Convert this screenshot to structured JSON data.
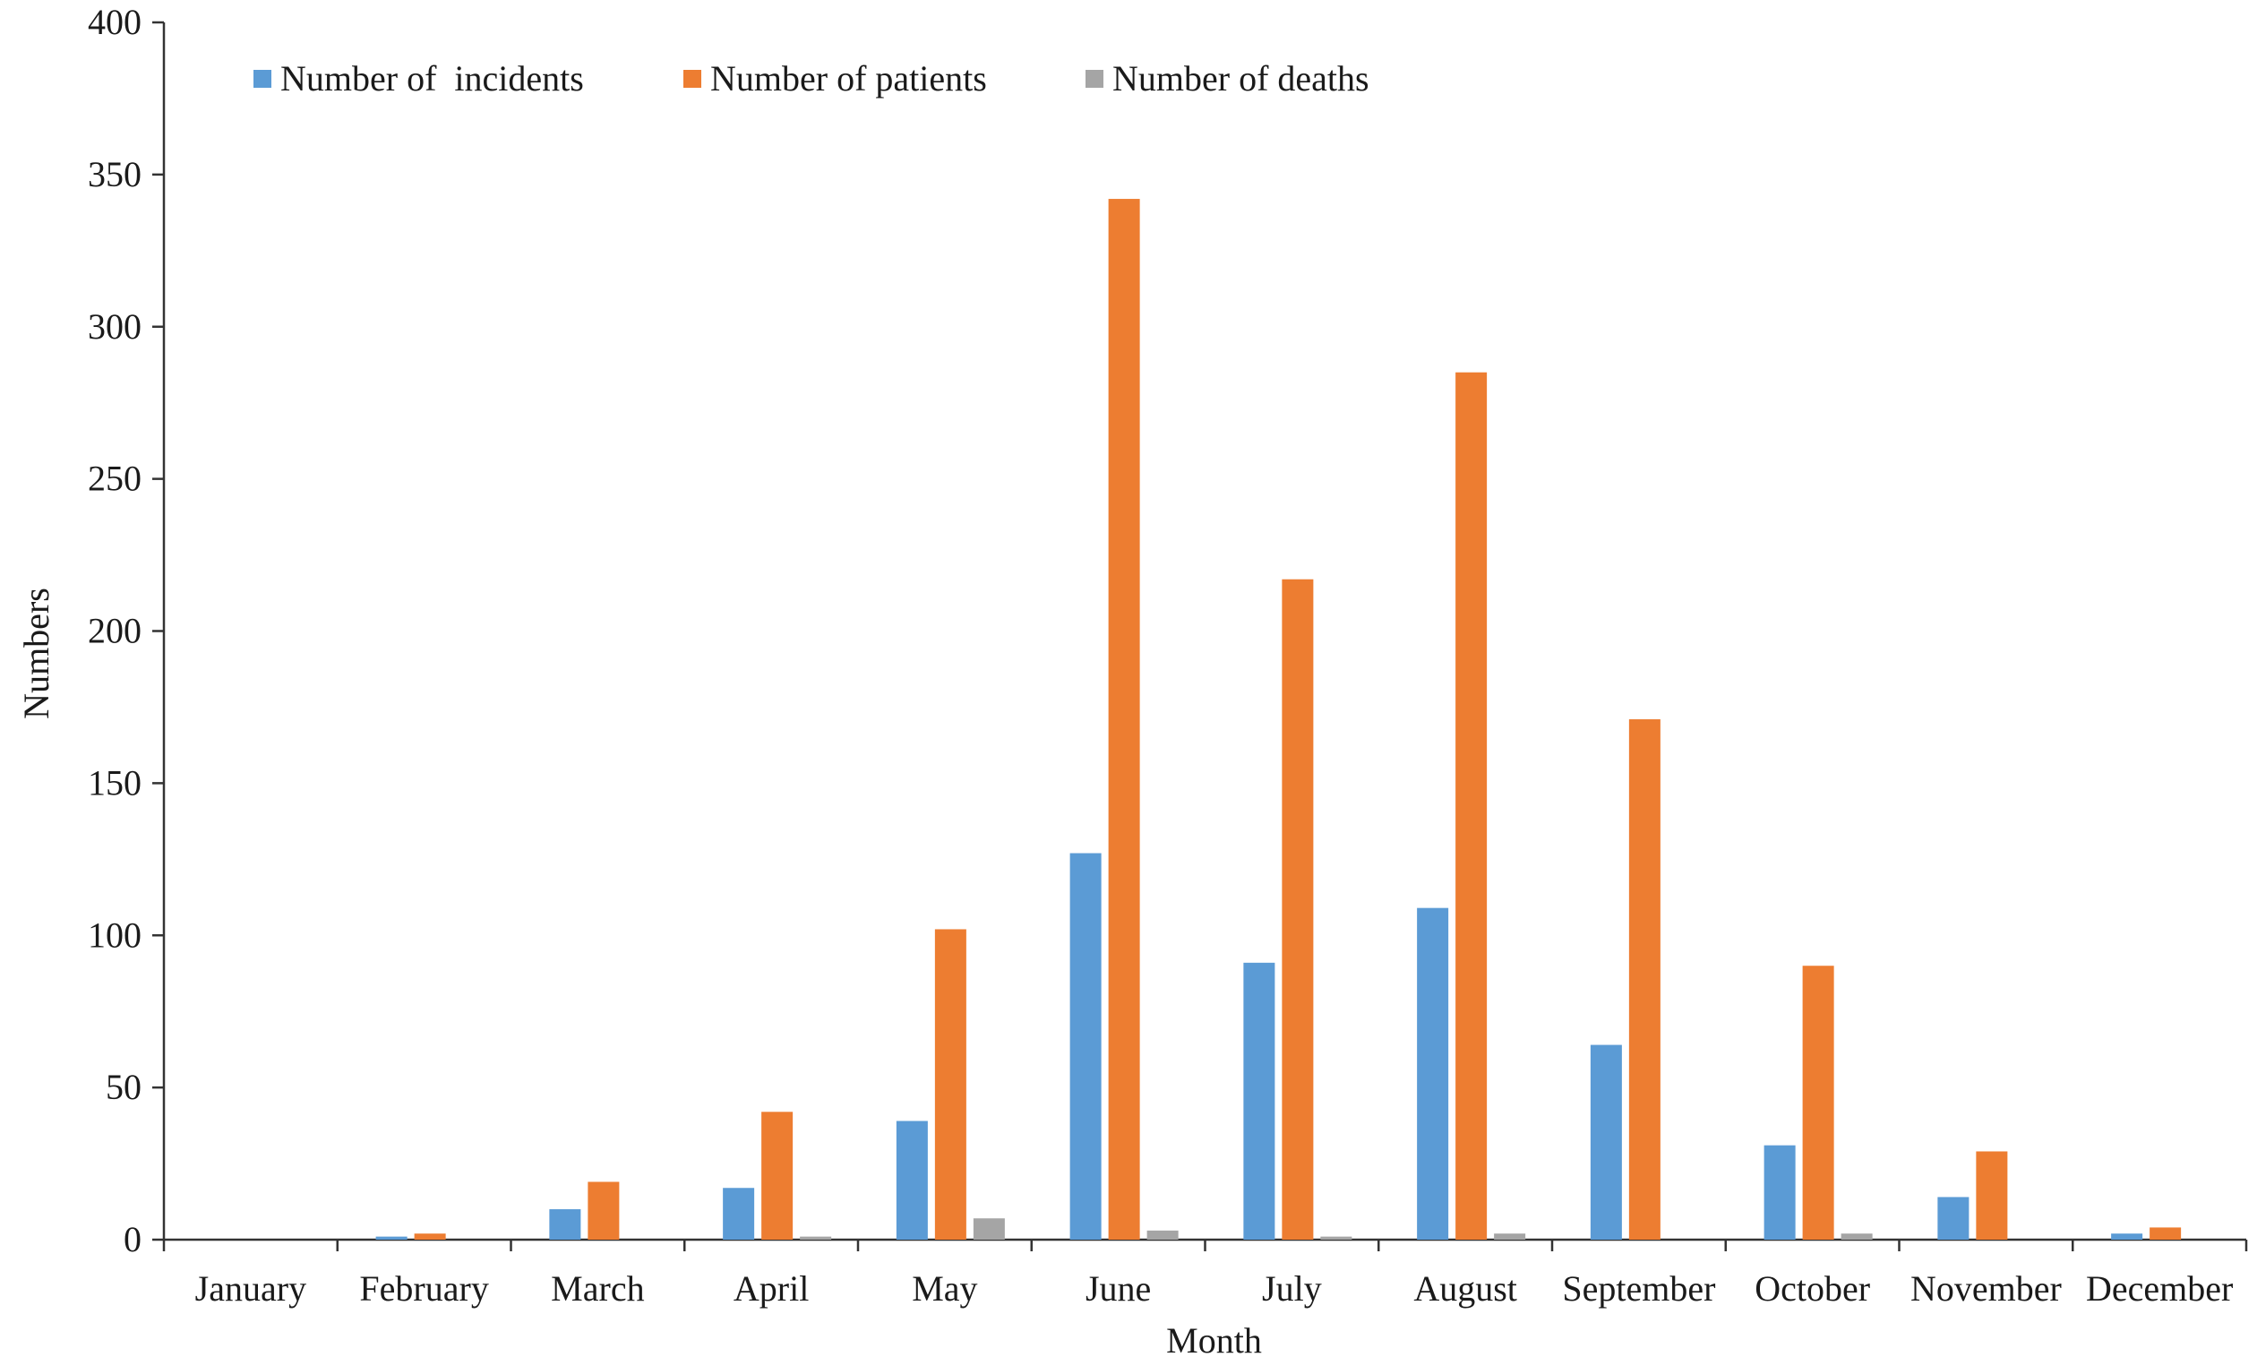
{
  "chart_data": {
    "type": "bar",
    "title": "",
    "xlabel": "Month",
    "ylabel": "Numbers",
    "ylim": [
      0,
      400
    ],
    "yticks": [
      0,
      50,
      100,
      150,
      200,
      250,
      300,
      350,
      400
    ],
    "grid": false,
    "legend_position": "top-left",
    "categories": [
      "January",
      "February",
      "March",
      "April",
      "May",
      "June",
      "July",
      "August",
      "September",
      "October",
      "November",
      "December"
    ],
    "series": [
      {
        "name": "Number of  incidents",
        "color": "#5b9bd5",
        "values": [
          0,
          1,
          10,
          17,
          39,
          127,
          91,
          109,
          64,
          31,
          14,
          2
        ]
      },
      {
        "name": "Number of patients",
        "color": "#ed7d31",
        "values": [
          0,
          2,
          19,
          42,
          102,
          342,
          217,
          285,
          171,
          90,
          29,
          4
        ]
      },
      {
        "name": "Number of deaths",
        "color": "#a5a5a5",
        "values": [
          0,
          0,
          0,
          1,
          7,
          3,
          1,
          2,
          0,
          2,
          0,
          0
        ]
      }
    ]
  }
}
